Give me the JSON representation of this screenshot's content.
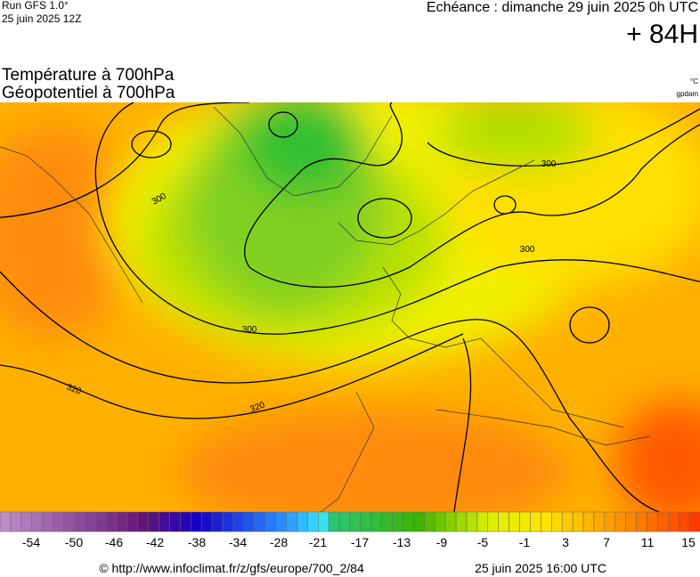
{
  "header": {
    "run": "Run GFS 1.0°",
    "date": "25 juin 2025 12Z",
    "echeance": "Echéance : dimanche 29 juin 2025 0h UTC",
    "lead": "+ 84H"
  },
  "titles": {
    "line1": "Température à 700hPa",
    "line2": "Géopotentiel à 700hPa",
    "unit1": "°C",
    "unit2": "gpdam"
  },
  "contour_labels": [
    "300",
    "300",
    "300",
    "300",
    "320",
    "320"
  ],
  "colorbar": {
    "ticks": [
      -54,
      -50,
      -46,
      -42,
      -38,
      -34,
      -28,
      -21,
      -17,
      -13,
      -9,
      -5,
      -1,
      3,
      7,
      11,
      15
    ]
  },
  "footer": {
    "url": "© http://www.infoclimat.fr/z/gfs/europe/700_2/84",
    "updated": "25 juin 2025 16:00 UTC"
  }
}
